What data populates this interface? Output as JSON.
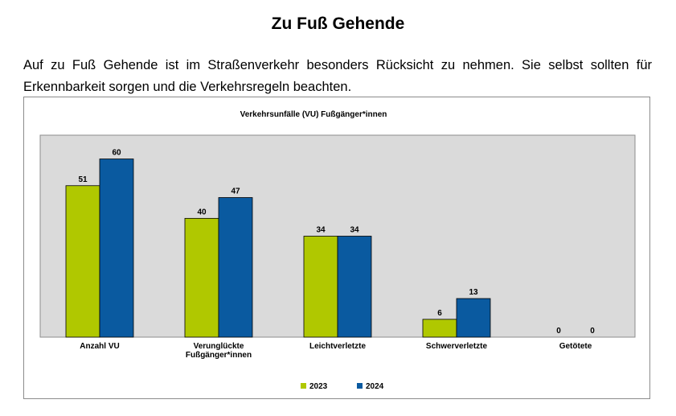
{
  "page": {
    "title": "Zu Fuß Gehende",
    "intro": "Auf zu Fuß Gehende ist im Straßenverkehr besonders Rücksicht zu nehmen. Sie selbst sollten für Erkennbarkeit sorgen und die Verkehrsregeln beachten."
  },
  "chart_data": {
    "type": "bar",
    "title": "Verkehrsunfälle (VU) Fußgänger*innen",
    "categories": [
      [
        "Anzahl VU"
      ],
      [
        "Verunglückte",
        "Fußgänger*innen"
      ],
      [
        "Leichtverletzte"
      ],
      [
        "Schwerverletzte"
      ],
      [
        "Getötete"
      ]
    ],
    "series": [
      {
        "name": "2023",
        "color": "#b0c800",
        "values": [
          51,
          40,
          34,
          6,
          0
        ]
      },
      {
        "name": "2024",
        "color": "#0a5aa0",
        "values": [
          60,
          47,
          34,
          13,
          0
        ]
      }
    ],
    "ylim": [
      0,
      68
    ],
    "grid": false,
    "plot_background": "#dadada",
    "legend_position": "bottom-center"
  }
}
